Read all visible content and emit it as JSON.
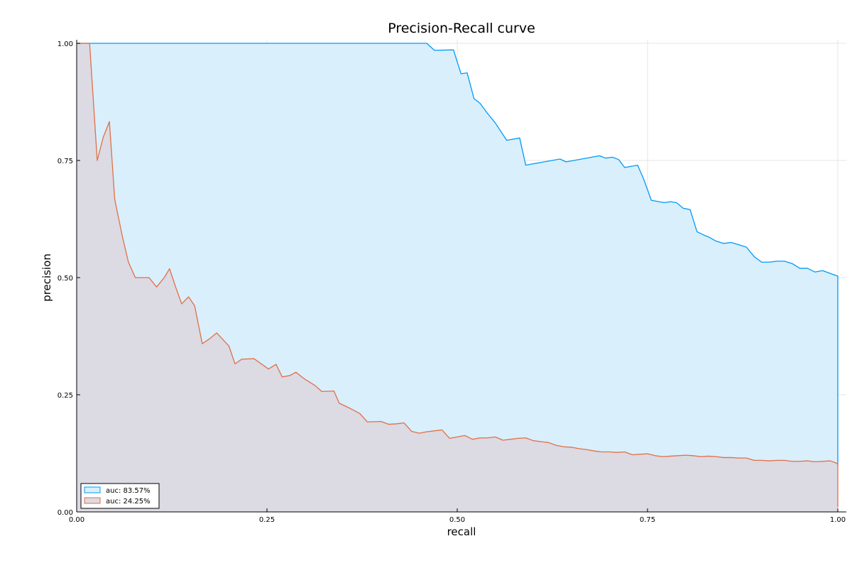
{
  "chart_data": {
    "type": "area",
    "title": "Precision-Recall curve",
    "xlabel": "recall",
    "ylabel": "precision",
    "xlim": [
      0,
      1
    ],
    "ylim": [
      0,
      1
    ],
    "x_ticks": [
      0,
      0.25,
      0.5,
      0.75,
      1
    ],
    "y_ticks": [
      0,
      0.25,
      0.5,
      0.75,
      1
    ],
    "x_tick_labels": [
      "0.00",
      "0.25",
      "0.50",
      "0.75",
      "1.00"
    ],
    "y_tick_labels": [
      "0.00",
      "0.25",
      "0.50",
      "0.75",
      "1.00"
    ],
    "grid": true,
    "legend_position": "bottom-left",
    "series": [
      {
        "name": "auc: 83.57%",
        "color": "#009af9",
        "fill": "#d9effc",
        "x": [
          0,
          0.46,
          0.47,
          0.495,
          0.505,
          0.513,
          0.522,
          0.53,
          0.54,
          0.55,
          0.565,
          0.582,
          0.59,
          0.635,
          0.643,
          0.687,
          0.695,
          0.704,
          0.712,
          0.72,
          0.737,
          0.745,
          0.755,
          0.772,
          0.78,
          0.788,
          0.797,
          0.806,
          0.815,
          0.825,
          0.83,
          0.84,
          0.85,
          0.86,
          0.87,
          0.88,
          0.89,
          0.9,
          0.91,
          0.92,
          0.93,
          0.94,
          0.95,
          0.96,
          0.97,
          0.98,
          1.0,
          1.0
        ],
        "y": [
          1.0,
          1.0,
          0.985,
          0.986,
          0.935,
          0.937,
          0.882,
          0.872,
          0.85,
          0.83,
          0.793,
          0.798,
          0.74,
          0.753,
          0.747,
          0.76,
          0.755,
          0.757,
          0.752,
          0.735,
          0.74,
          0.71,
          0.665,
          0.66,
          0.662,
          0.66,
          0.648,
          0.645,
          0.598,
          0.59,
          0.587,
          0.578,
          0.573,
          0.575,
          0.57,
          0.565,
          0.545,
          0.533,
          0.533,
          0.535,
          0.535,
          0.53,
          0.52,
          0.52,
          0.512,
          0.515,
          0.503,
          0.1
        ]
      },
      {
        "name": "auc: 24.25%",
        "color": "#e26f46",
        "fill": "#dcdae3",
        "x": [
          0,
          0.017,
          0.027,
          0.035,
          0.043,
          0.05,
          0.06,
          0.068,
          0.077,
          0.085,
          0.095,
          0.105,
          0.115,
          0.122,
          0.13,
          0.138,
          0.147,
          0.155,
          0.165,
          0.175,
          0.184,
          0.2,
          0.208,
          0.217,
          0.233,
          0.252,
          0.262,
          0.27,
          0.28,
          0.288,
          0.3,
          0.313,
          0.322,
          0.338,
          0.345,
          0.358,
          0.372,
          0.382,
          0.4,
          0.41,
          0.42,
          0.43,
          0.44,
          0.45,
          0.46,
          0.47,
          0.48,
          0.49,
          0.5,
          0.51,
          0.52,
          0.53,
          0.54,
          0.55,
          0.56,
          0.57,
          0.58,
          0.59,
          0.6,
          0.61,
          0.62,
          0.63,
          0.64,
          0.65,
          0.66,
          0.67,
          0.68,
          0.69,
          0.7,
          0.71,
          0.72,
          0.73,
          0.74,
          0.75,
          0.76,
          0.77,
          0.78,
          0.79,
          0.8,
          0.81,
          0.82,
          0.83,
          0.84,
          0.85,
          0.86,
          0.87,
          0.88,
          0.89,
          0.9,
          0.91,
          0.92,
          0.93,
          0.94,
          0.95,
          0.96,
          0.97,
          0.98,
          0.99,
          1.0,
          1.0
        ],
        "y": [
          1.0,
          1.0,
          0.75,
          0.8,
          0.833,
          0.667,
          0.588,
          0.533,
          0.5,
          0.5,
          0.5,
          0.48,
          0.5,
          0.519,
          0.48,
          0.444,
          0.459,
          0.44,
          0.359,
          0.37,
          0.382,
          0.354,
          0.316,
          0.326,
          0.327,
          0.305,
          0.315,
          0.288,
          0.291,
          0.298,
          0.283,
          0.27,
          0.257,
          0.258,
          0.232,
          0.222,
          0.21,
          0.192,
          0.193,
          0.187,
          0.188,
          0.19,
          0.172,
          0.168,
          0.171,
          0.173,
          0.175,
          0.157,
          0.16,
          0.163,
          0.155,
          0.158,
          0.158,
          0.16,
          0.153,
          0.155,
          0.157,
          0.158,
          0.152,
          0.15,
          0.148,
          0.142,
          0.139,
          0.138,
          0.135,
          0.133,
          0.13,
          0.128,
          0.128,
          0.127,
          0.128,
          0.122,
          0.123,
          0.124,
          0.12,
          0.118,
          0.119,
          0.12,
          0.121,
          0.12,
          0.118,
          0.119,
          0.118,
          0.116,
          0.116,
          0.115,
          0.115,
          0.11,
          0.11,
          0.109,
          0.11,
          0.11,
          0.108,
          0.108,
          0.109,
          0.107,
          0.108,
          0.109,
          0.103,
          0.01
        ]
      }
    ]
  }
}
